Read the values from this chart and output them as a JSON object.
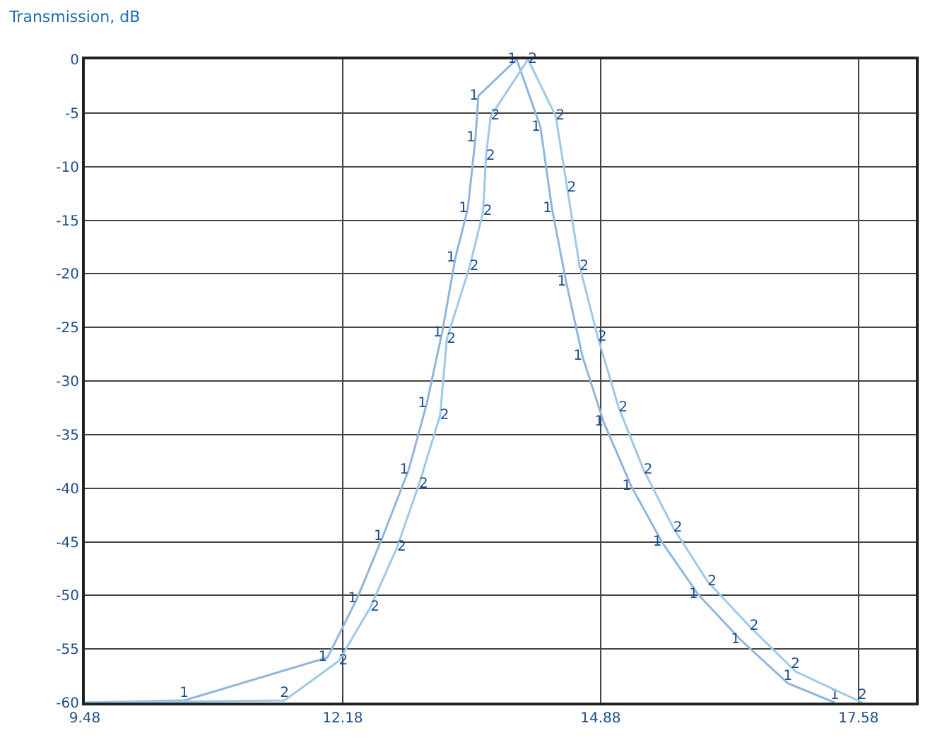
{
  "chart_data": {
    "type": "line",
    "title": "Transmission, dB",
    "xlim": [
      9.48,
      18.18
    ],
    "xticks": [
      9.48,
      12.18,
      14.88,
      17.58
    ],
    "ylim": [
      -60,
      0
    ],
    "yticks": [
      0,
      -5,
      -10,
      -15,
      -20,
      -25,
      -30,
      -35,
      -40,
      -45,
      -50,
      -55,
      -60
    ],
    "grid": true,
    "legend": false,
    "marker": "none",
    "line_style": "solid",
    "series": [
      {
        "name": "1",
        "color": "#8fb6de",
        "x": [
          9.48,
          10.52,
          12.02,
          12.33,
          12.6,
          12.87,
          13.06,
          13.22,
          13.36,
          13.49,
          13.57,
          13.6,
          14.0,
          14.25,
          14.37,
          14.52,
          14.69,
          14.91,
          15.2,
          15.52,
          15.9,
          16.34,
          16.84,
          17.33
        ],
        "values": [
          -60,
          -59.8,
          -55.8,
          -50.3,
          -44.5,
          -38.3,
          -32.1,
          -25.5,
          -18.5,
          -13.9,
          -7.3,
          -3.4,
          0,
          -6.3,
          -13.9,
          -20.8,
          -27.7,
          -33.8,
          -39.8,
          -45.0,
          -49.9,
          -54.1,
          -58.2,
          -60
        ]
      },
      {
        "name": "2",
        "color": "#9ec9e8",
        "x": [
          9.48,
          11.57,
          12.14,
          12.47,
          12.75,
          12.98,
          13.2,
          13.27,
          13.51,
          13.65,
          13.68,
          13.73,
          14.12,
          14.41,
          14.53,
          14.66,
          14.85,
          15.07,
          15.33,
          15.64,
          16.0,
          16.44,
          16.92,
          17.62
        ],
        "values": [
          -60,
          -59.8,
          -56.1,
          -51.1,
          -45.5,
          -39.6,
          -33.2,
          -26.1,
          -19.3,
          -14.2,
          -9.0,
          -5.3,
          0,
          -5.3,
          -12.0,
          -19.3,
          -25.9,
          -32.5,
          -38.3,
          -43.7,
          -48.7,
          -52.9,
          -57.1,
          -60
        ]
      }
    ]
  }
}
